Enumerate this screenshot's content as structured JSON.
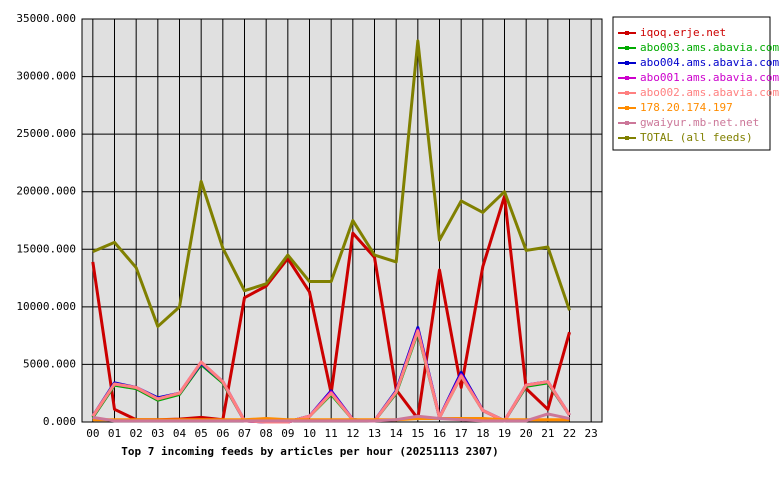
{
  "chart_data": {
    "type": "line",
    "title": "Top 7 incoming feeds by articles per hour (20251113 2307)",
    "categories": [
      "00",
      "01",
      "02",
      "03",
      "04",
      "05",
      "06",
      "07",
      "08",
      "09",
      "10",
      "11",
      "12",
      "13",
      "14",
      "15",
      "16",
      "17",
      "18",
      "19",
      "20",
      "21",
      "22",
      "23"
    ],
    "ylim": [
      0,
      35000
    ],
    "yticks": [
      {
        "value": 0,
        "label": "0.000"
      },
      {
        "value": 5000,
        "label": "5000.000"
      },
      {
        "value": 10000,
        "label": "10000.000"
      },
      {
        "value": 15000,
        "label": "15000.000"
      },
      {
        "value": 20000,
        "label": "20000.000"
      },
      {
        "value": 25000,
        "label": "25000.000"
      },
      {
        "value": 30000,
        "label": "30000.000"
      },
      {
        "value": 35000,
        "label": "35000.000"
      }
    ],
    "grid": true,
    "legend": "right",
    "series": [
      {
        "name": "iqoq.erje.net",
        "color": "#cc0000",
        "values": [
          13900,
          1100,
          200,
          200,
          250,
          400,
          200,
          10800,
          11800,
          14200,
          11300,
          2500,
          16400,
          14300,
          2800,
          300,
          13200,
          3000,
          13500,
          19600,
          2900,
          1100,
          7800,
          null
        ]
      },
      {
        "name": "abo003.ams.abavia.com",
        "color": "#00aa00",
        "values": [
          400,
          3200,
          2900,
          1900,
          2400,
          5000,
          3400,
          100,
          0,
          0,
          500,
          2400,
          200,
          100,
          2500,
          7800,
          400,
          4000,
          1000,
          100,
          3100,
          3400,
          600,
          null
        ]
      },
      {
        "name": "abo004.ams.abavia.com",
        "color": "#0000cc",
        "values": [
          500,
          3400,
          3000,
          2100,
          2500,
          5100,
          3500,
          100,
          0,
          0,
          500,
          2700,
          200,
          100,
          2700,
          8200,
          400,
          4300,
          1000,
          100,
          3200,
          3500,
          600,
          null
        ]
      },
      {
        "name": "abo001.ams.abavia.com",
        "color": "#cc00cc",
        "values": [
          500,
          3300,
          3000,
          2000,
          2500,
          5200,
          3500,
          100,
          0,
          0,
          500,
          2600,
          200,
          100,
          2600,
          8000,
          400,
          4100,
          1000,
          100,
          3200,
          3500,
          600,
          null
        ]
      },
      {
        "name": "abo002.ams.abavia.com",
        "color": "#ff8080",
        "values": [
          500,
          3300,
          3000,
          2000,
          2500,
          5200,
          3500,
          100,
          0,
          0,
          500,
          2500,
          200,
          100,
          2600,
          7900,
          400,
          4000,
          1000,
          100,
          3200,
          3500,
          600,
          null
        ]
      },
      {
        "name": "178.20.174.197",
        "color": "#ff8c00",
        "values": [
          200,
          200,
          200,
          200,
          200,
          200,
          200,
          200,
          300,
          200,
          200,
          200,
          200,
          200,
          200,
          300,
          300,
          300,
          300,
          200,
          200,
          200,
          200,
          null
        ]
      },
      {
        "name": "gwaiyur.mb-net.net",
        "color": "#cc7799",
        "values": [
          400,
          100,
          100,
          100,
          100,
          100,
          100,
          100,
          100,
          100,
          100,
          100,
          100,
          100,
          200,
          500,
          300,
          200,
          100,
          100,
          100,
          700,
          300,
          null
        ]
      },
      {
        "name": "TOTAL (all feeds)",
        "color": "#808000",
        "values": [
          14800,
          15600,
          13400,
          8300,
          10000,
          20900,
          15100,
          11400,
          12000,
          14500,
          12200,
          12200,
          17500,
          14500,
          13900,
          33100,
          15800,
          19200,
          18200,
          20000,
          14900,
          15200,
          9700,
          null
        ]
      }
    ]
  }
}
